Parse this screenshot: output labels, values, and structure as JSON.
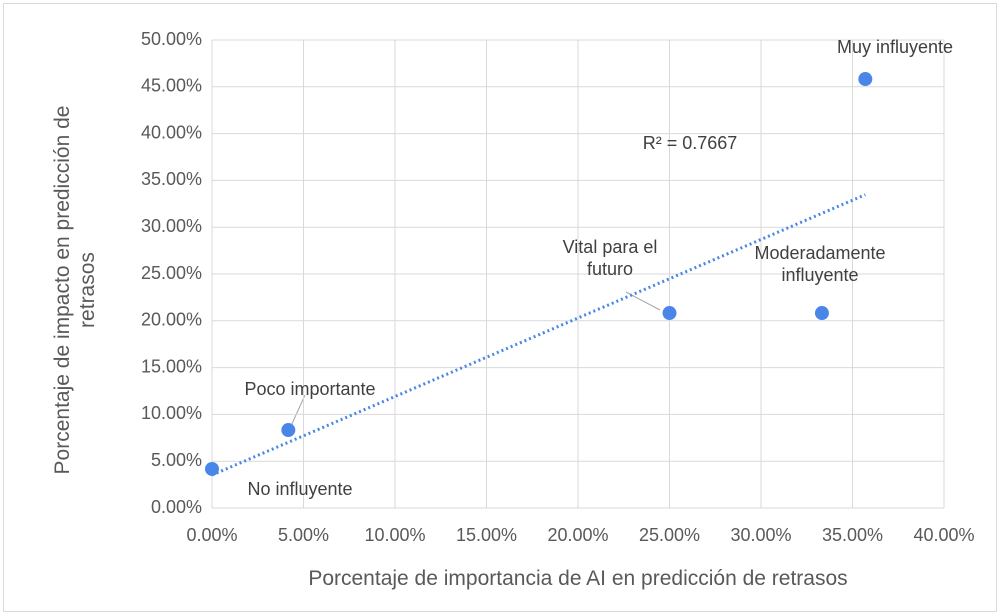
{
  "chart_data": {
    "type": "scatter",
    "x_label": "Porcentaje de importancia de AI en predicción de retrasos",
    "y_label": "Porcentaje de impacto en predicción de retrasos",
    "annotation": "R² = 0.7667",
    "point_labels": [
      "No influyente",
      "Poco importante",
      "Vital para el futuro",
      "Moderadamente influyente",
      "Muy influyente"
    ],
    "x": [
      0,
      4.17,
      25,
      33.33,
      35.7
    ],
    "series": [
      {
        "name": null,
        "color": "#4a86e8",
        "values": [
          4.17,
          8.33,
          20.83,
          20.83,
          45.83
        ]
      }
    ],
    "trendline": {
      "type": "linear",
      "color": "#4a86e8"
    },
    "xlim": [
      0,
      40
    ],
    "xticks": [
      {
        "value": 0,
        "label": "0.00%"
      },
      {
        "value": 5,
        "label": "5.00%"
      },
      {
        "value": 10,
        "label": "10.00%"
      },
      {
        "value": 15,
        "label": "15.00%"
      },
      {
        "value": 20,
        "label": "20.00%"
      },
      {
        "value": 25,
        "label": "25.00%"
      },
      {
        "value": 30,
        "label": "30.00%"
      },
      {
        "value": 35,
        "label": "35.00%"
      },
      {
        "value": 40,
        "label": "40.00%"
      }
    ],
    "ylim": [
      0,
      50
    ],
    "yticks": [
      {
        "value": 0,
        "label": "0.00%"
      },
      {
        "value": 5,
        "label": "5.00%"
      },
      {
        "value": 10,
        "label": "10.00%"
      },
      {
        "value": 15,
        "label": "15.00%"
      },
      {
        "value": 20,
        "label": "20.00%"
      },
      {
        "value": 25,
        "label": "25.00%"
      },
      {
        "value": 30,
        "label": "30.00%"
      },
      {
        "value": 35,
        "label": "35.00%"
      },
      {
        "value": 40,
        "label": "40.00%"
      },
      {
        "value": 45,
        "label": "45.00%"
      },
      {
        "value": 50,
        "label": "50.00%"
      }
    ],
    "grid": true
  }
}
